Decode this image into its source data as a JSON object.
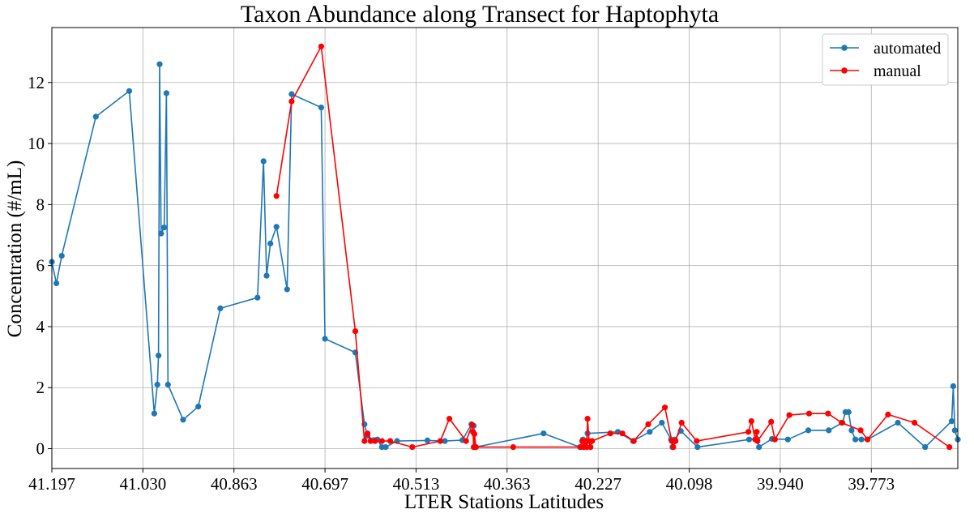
{
  "chart_data": {
    "type": "line",
    "title": "Taxon Abundance along Transect for Haptophyta",
    "xlabel": "LTER Stations Latitudes",
    "ylabel": "Concentration (#/mL)",
    "x_ticks": [
      "41.197",
      "41.030",
      "40.863",
      "40.697",
      "40.513",
      "40.363",
      "40.227",
      "40.098",
      "39.940",
      "39.773"
    ],
    "y_ticks": [
      "0",
      "2",
      "4",
      "6",
      "8",
      "10",
      "12"
    ],
    "x_axis_note": "x positions are sample indices along the transect (0–119); the ticks label the station latitudes at indices 0, 12, 24, 36, 48, 60, 72, 84, 96, 108",
    "xlim": [
      0,
      119.4
    ],
    "ylim": [
      -0.65,
      13.8
    ],
    "grid": true,
    "legend_position": "top-right",
    "series": [
      {
        "name": "automated",
        "color": "#1f77b4",
        "points": [
          [
            0,
            6.12
          ],
          [
            0.6,
            5.42
          ],
          [
            1.3,
            6.32
          ],
          [
            5.8,
            10.88
          ],
          [
            10.2,
            11.72
          ],
          [
            13.5,
            1.15
          ],
          [
            13.9,
            2.1
          ],
          [
            14.05,
            3.05
          ],
          [
            14.2,
            12.6
          ],
          [
            14.4,
            7.05
          ],
          [
            14.8,
            7.25
          ],
          [
            15.1,
            11.65
          ],
          [
            15.3,
            2.1
          ],
          [
            17.3,
            0.95
          ],
          [
            19.3,
            1.38
          ],
          [
            22.2,
            4.6
          ],
          [
            27.1,
            4.95
          ],
          [
            27.9,
            9.42
          ],
          [
            28.3,
            5.67
          ],
          [
            28.8,
            6.72
          ],
          [
            29.6,
            7.27
          ],
          [
            31.0,
            5.22
          ],
          [
            31.6,
            11.62
          ],
          [
            35.5,
            11.18
          ],
          [
            36.0,
            3.6
          ],
          [
            40.0,
            3.15
          ],
          [
            41.2,
            0.8
          ],
          [
            41.6,
            0.42
          ],
          [
            42.4,
            0.28
          ],
          [
            42.9,
            0.3
          ],
          [
            43.5,
            0.05
          ],
          [
            44.0,
            0.05
          ],
          [
            45.5,
            0.25
          ],
          [
            49.5,
            0.27
          ],
          [
            51.8,
            0.25
          ],
          [
            54.1,
            0.28
          ],
          [
            55.3,
            0.8
          ],
          [
            55.6,
            0.75
          ],
          [
            55.8,
            0.05
          ],
          [
            64.8,
            0.5
          ],
          [
            69.6,
            0.05
          ],
          [
            70.0,
            0.3
          ],
          [
            70.4,
            0.22
          ],
          [
            70.6,
            0.5
          ],
          [
            74.6,
            0.55
          ],
          [
            76.6,
            0.25
          ],
          [
            78.8,
            0.55
          ],
          [
            80.4,
            0.85
          ],
          [
            81.6,
            0.3
          ],
          [
            81.8,
            0.05
          ],
          [
            82.1,
            0.3
          ],
          [
            82.9,
            0.58
          ],
          [
            85.1,
            0.05
          ],
          [
            91.9,
            0.3
          ],
          [
            92.9,
            0.32
          ],
          [
            93.2,
            0.05
          ],
          [
            94.9,
            0.32
          ],
          [
            97.0,
            0.3
          ],
          [
            99.7,
            0.6
          ],
          [
            102.4,
            0.6
          ],
          [
            104.2,
            0.85
          ],
          [
            104.6,
            1.2
          ],
          [
            105.0,
            1.2
          ],
          [
            105.4,
            0.6
          ],
          [
            105.9,
            0.3
          ],
          [
            106.7,
            0.3
          ],
          [
            107.5,
            0.3
          ],
          [
            111.5,
            0.85
          ],
          [
            115.1,
            0.05
          ],
          [
            118.6,
            0.9
          ],
          [
            118.8,
            2.05
          ],
          [
            119.0,
            0.6
          ],
          [
            119.4,
            0.3
          ]
        ]
      },
      {
        "name": "manual",
        "color": "#ff0000",
        "points": [
          [
            29.6,
            8.28
          ],
          [
            31.6,
            11.38
          ],
          [
            35.5,
            13.18
          ],
          [
            40.0,
            3.85
          ],
          [
            41.2,
            0.25
          ],
          [
            41.6,
            0.5
          ],
          [
            42.0,
            0.25
          ],
          [
            42.6,
            0.25
          ],
          [
            43.5,
            0.25
          ],
          [
            44.6,
            0.25
          ],
          [
            47.5,
            0.05
          ],
          [
            51.2,
            0.25
          ],
          [
            52.4,
            0.98
          ],
          [
            54.6,
            0.25
          ],
          [
            55.4,
            0.78
          ],
          [
            55.5,
            0.55
          ],
          [
            55.6,
            0.05
          ],
          [
            55.7,
            0.48
          ],
          [
            55.9,
            0.05
          ],
          [
            60.8,
            0.05
          ],
          [
            69.7,
            0.05
          ],
          [
            69.9,
            0.25
          ],
          [
            70.1,
            0.05
          ],
          [
            70.3,
            0.25
          ],
          [
            70.5,
            0.05
          ],
          [
            70.6,
            0.98
          ],
          [
            70.8,
            0.25
          ],
          [
            71.0,
            0.05
          ],
          [
            71.2,
            0.25
          ],
          [
            73.6,
            0.5
          ],
          [
            75.2,
            0.5
          ],
          [
            76.7,
            0.25
          ],
          [
            78.6,
            0.8
          ],
          [
            80.8,
            1.35
          ],
          [
            81.7,
            0.25
          ],
          [
            81.9,
            0.05
          ],
          [
            82.2,
            0.25
          ],
          [
            83.0,
            0.85
          ],
          [
            85.0,
            0.25
          ],
          [
            91.8,
            0.55
          ],
          [
            92.2,
            0.9
          ],
          [
            92.7,
            0.3
          ],
          [
            92.9,
            0.55
          ],
          [
            93.0,
            0.25
          ],
          [
            94.8,
            0.88
          ],
          [
            95.3,
            0.3
          ],
          [
            97.2,
            1.1
          ],
          [
            99.8,
            1.15
          ],
          [
            102.3,
            1.15
          ],
          [
            104.1,
            0.85
          ],
          [
            106.6,
            0.6
          ],
          [
            107.5,
            0.3
          ],
          [
            110.2,
            1.12
          ],
          [
            113.7,
            0.85
          ],
          [
            118.3,
            0.05
          ]
        ]
      }
    ]
  }
}
